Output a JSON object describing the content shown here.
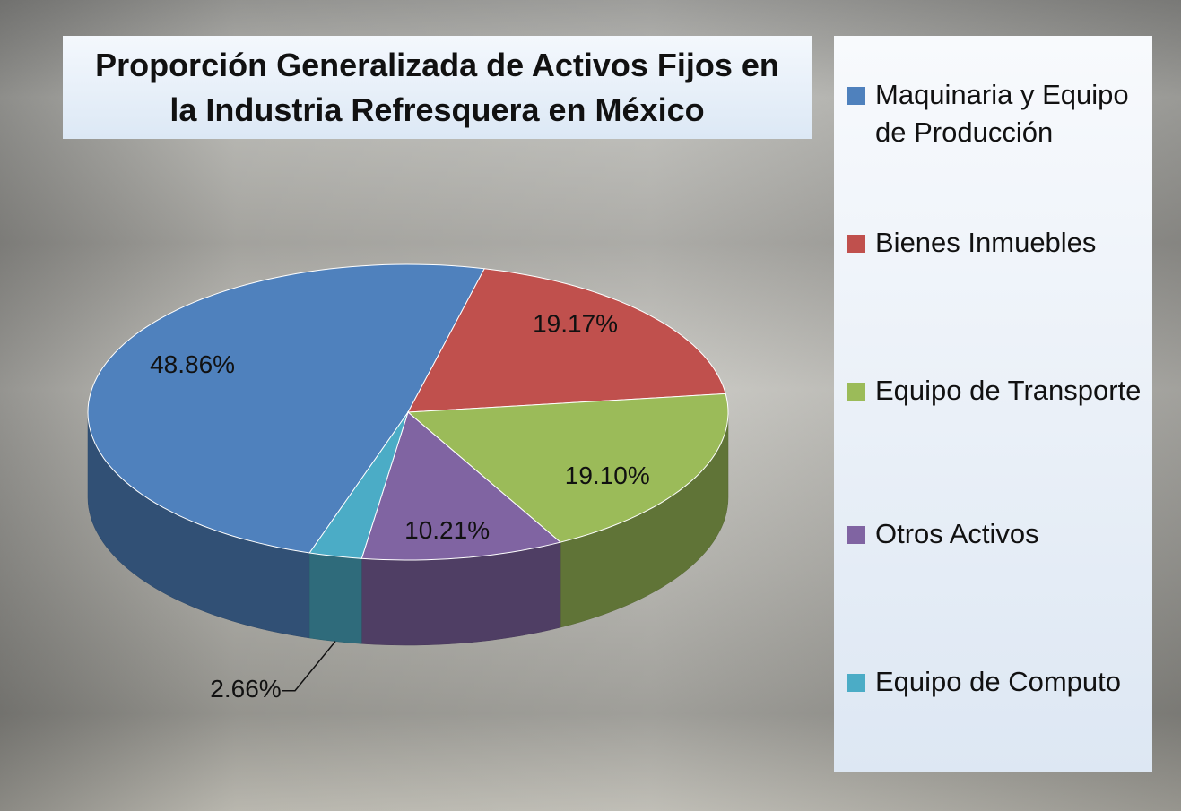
{
  "chart_data": {
    "type": "pie3d",
    "title": "Proporción Generalizada de Activos Fijos en la Industria Refresquera en México",
    "categories": [
      "Maquinaria y Equipo de Producción",
      "Bienes Inmuebles",
      "Equipo de Transporte",
      "Otros Activos",
      "Equipo de Computo"
    ],
    "values": [
      48.86,
      19.17,
      19.1,
      10.21,
      2.66
    ],
    "value_labels": [
      "48.86%",
      "19.17%",
      "19.10%",
      "10.21%",
      "2.66%"
    ],
    "colors": [
      "#4f81bd",
      "#c0504d",
      "#9bbb59",
      "#8064a2",
      "#4bacc6"
    ],
    "legend": "right"
  }
}
